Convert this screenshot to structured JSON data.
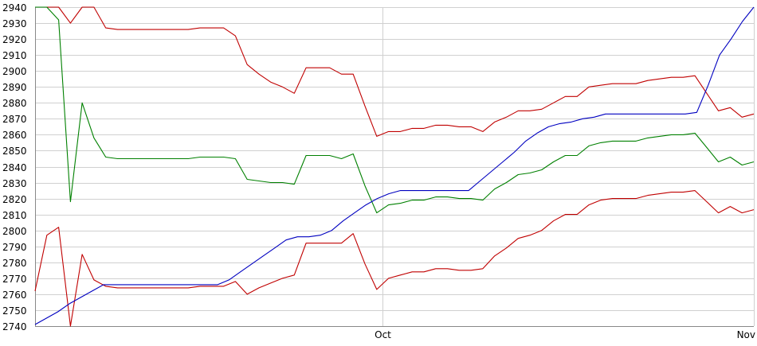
{
  "chart_data": {
    "type": "line",
    "ylim": [
      2740,
      2940
    ],
    "yticks": [
      2740,
      2750,
      2760,
      2770,
      2780,
      2790,
      2800,
      2810,
      2820,
      2830,
      2840,
      2850,
      2860,
      2870,
      2880,
      2890,
      2900,
      2910,
      2920,
      2930,
      2940
    ],
    "ytick_labels": [
      "2740",
      "2750",
      "2760",
      "2770",
      "2780",
      "2790",
      "2800",
      "2810",
      "2820",
      "2830",
      "2840",
      "2850",
      "2860",
      "2870",
      "2880",
      "2890",
      "2900",
      "2910",
      "2920",
      "2930",
      "2940"
    ],
    "xlim": [
      0,
      60
    ],
    "xticks": [
      29,
      60
    ],
    "xtick_labels": [
      "Oct",
      "Nov"
    ],
    "grid": true,
    "legend": "none",
    "series": [
      {
        "color": "#c00000",
        "values": [
          2940,
          2940,
          2940,
          2930,
          2940,
          2940,
          2927,
          2926,
          2926,
          2926,
          2926,
          2926,
          2926,
          2926,
          2927,
          2927,
          2927,
          2922,
          2904,
          2898,
          2893,
          2890,
          2886,
          2902,
          2902,
          2902,
          2898,
          2898,
          2878,
          2859,
          2862,
          2862,
          2864,
          2864,
          2866,
          2866,
          2865,
          2865,
          2862,
          2868,
          2871,
          2875,
          2875,
          2876,
          2880,
          2884,
          2884,
          2890,
          2891,
          2892,
          2892,
          2892,
          2894,
          2895,
          2896,
          2896,
          2897,
          2886,
          2875,
          2877,
          2871,
          2873
        ]
      },
      {
        "color": "#008000",
        "values": [
          2940,
          2940,
          2932,
          2818,
          2880,
          2858,
          2846,
          2845,
          2845,
          2845,
          2845,
          2845,
          2845,
          2845,
          2846,
          2846,
          2846,
          2845,
          2832,
          2831,
          2830,
          2830,
          2829,
          2847,
          2847,
          2847,
          2845,
          2848,
          2828,
          2811,
          2816,
          2817,
          2819,
          2819,
          2821,
          2821,
          2820,
          2820,
          2819,
          2826,
          2830,
          2835,
          2836,
          2838,
          2843,
          2847,
          2847,
          2853,
          2855,
          2856,
          2856,
          2856,
          2858,
          2859,
          2860,
          2860,
          2861,
          2852,
          2843,
          2846,
          2841,
          2843
        ]
      },
      {
        "color": "#c00000",
        "values": [
          2762,
          2797,
          2802,
          2740,
          2785,
          2769,
          2765,
          2764,
          2764,
          2764,
          2764,
          2764,
          2764,
          2764,
          2765,
          2765,
          2765,
          2768,
          2760,
          2764,
          2767,
          2770,
          2772,
          2792,
          2792,
          2792,
          2792,
          2798,
          2779,
          2763,
          2770,
          2772,
          2774,
          2774,
          2776,
          2776,
          2775,
          2775,
          2776,
          2784,
          2789,
          2795,
          2797,
          2800,
          2806,
          2810,
          2810,
          2816,
          2819,
          2820,
          2820,
          2820,
          2822,
          2823,
          2824,
          2824,
          2825,
          2818,
          2811,
          2815,
          2811,
          2813
        ]
      },
      {
        "color": "#0000c0",
        "values": [
          2741,
          2745,
          2749,
          2754,
          2758,
          2762,
          2766,
          2766,
          2766,
          2766,
          2766,
          2766,
          2766,
          2766,
          2766,
          2766,
          2766,
          2769,
          2774,
          2779,
          2784,
          2789,
          2794,
          2796,
          2796,
          2797,
          2800,
          2806,
          2811,
          2816,
          2820,
          2823,
          2825,
          2825,
          2825,
          2825,
          2825,
          2825,
          2825,
          2831,
          2837,
          2843,
          2849,
          2856,
          2861,
          2865,
          2867,
          2868,
          2870,
          2871,
          2873,
          2873,
          2873,
          2873,
          2873,
          2873,
          2873,
          2873,
          2874,
          2891,
          2910,
          2920,
          2931,
          2940
        ]
      }
    ]
  }
}
